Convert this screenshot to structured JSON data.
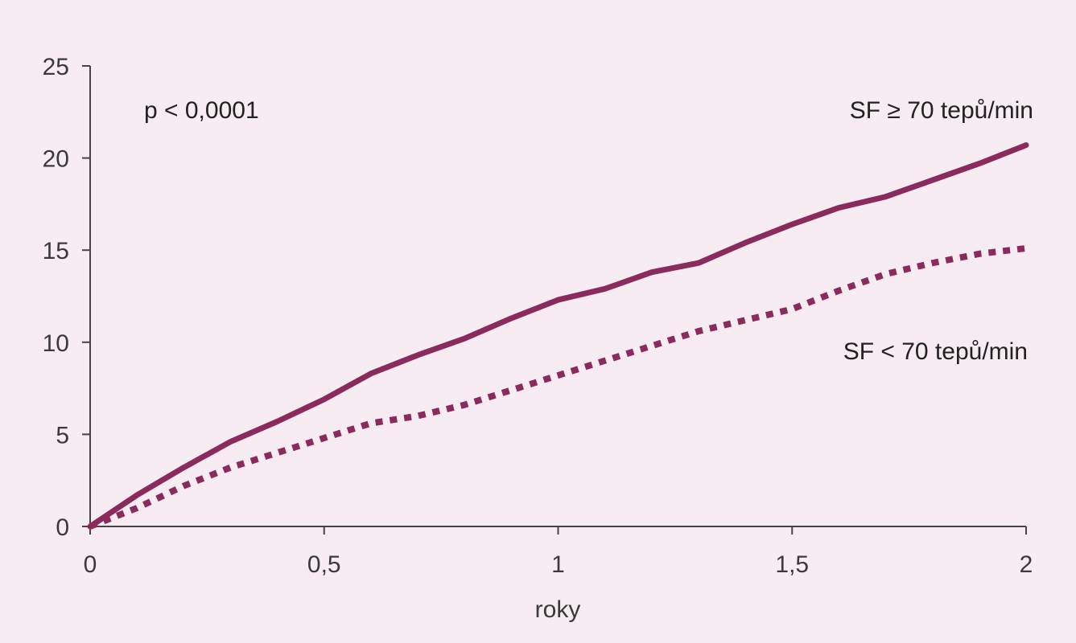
{
  "chart_data": {
    "type": "line",
    "xlabel": "roky",
    "ylabel": "",
    "xlim": [
      0,
      2
    ],
    "ylim": [
      0,
      25
    ],
    "x_ticks": [
      0,
      0.5,
      1,
      1.5,
      2
    ],
    "x_tick_labels": [
      "0",
      "0,5",
      "1",
      "1,5",
      "2"
    ],
    "y_ticks": [
      0,
      5,
      10,
      15,
      20,
      25
    ],
    "y_tick_labels": [
      "0",
      "5",
      "10",
      "15",
      "20",
      "25"
    ],
    "grid": false,
    "annotations": {
      "p_value": "p < 0,0001"
    },
    "series": [
      {
        "name": "SF ≥ 70 tepů/min",
        "style": "solid",
        "color": "#8b2a5c",
        "x": [
          0,
          0.1,
          0.2,
          0.3,
          0.4,
          0.5,
          0.6,
          0.7,
          0.8,
          0.9,
          1.0,
          1.1,
          1.2,
          1.3,
          1.4,
          1.5,
          1.6,
          1.7,
          1.8,
          1.9,
          2.0
        ],
        "values": [
          0,
          1.7,
          3.2,
          4.6,
          5.7,
          6.9,
          8.3,
          9.3,
          10.2,
          11.3,
          12.3,
          12.9,
          13.8,
          14.3,
          15.4,
          16.4,
          17.3,
          17.9,
          18.8,
          19.7,
          20.7
        ]
      },
      {
        "name": "SF < 70 tepů/min",
        "style": "dotted",
        "color": "#8b2a5c",
        "x": [
          0,
          0.1,
          0.2,
          0.3,
          0.4,
          0.5,
          0.6,
          0.7,
          0.8,
          0.9,
          1.0,
          1.1,
          1.2,
          1.3,
          1.4,
          1.5,
          1.6,
          1.7,
          1.8,
          1.9,
          2.0
        ],
        "values": [
          0,
          1.0,
          2.2,
          3.2,
          4.0,
          4.8,
          5.6,
          6.0,
          6.6,
          7.4,
          8.2,
          9.0,
          9.8,
          10.6,
          11.2,
          11.8,
          12.8,
          13.7,
          14.3,
          14.8,
          15.1
        ]
      }
    ]
  }
}
